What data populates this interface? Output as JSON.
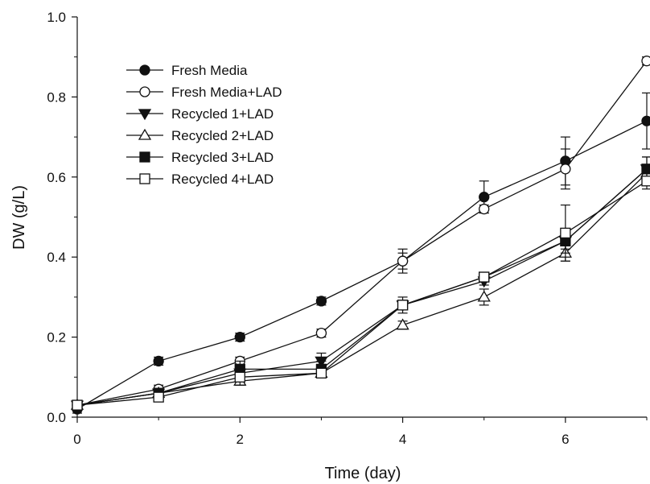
{
  "chart_data": {
    "type": "line",
    "title": "",
    "xlabel": "Time (day)",
    "ylabel": "DW (g/L)",
    "xlim": [
      0,
      7
    ],
    "ylim": [
      0,
      1.0
    ],
    "xticks": [
      0,
      2,
      4,
      6
    ],
    "yticks": [
      0.0,
      0.2,
      0.4,
      0.6,
      0.8,
      1.0
    ],
    "x_tick_labels": [
      "0",
      "2",
      "4",
      "6"
    ],
    "y_tick_labels": [
      "0.0",
      "0.2",
      "0.4",
      "0.6",
      "0.8",
      "1.0"
    ],
    "grid": false,
    "legend_position": "top-left",
    "x": [
      0,
      1,
      2,
      3,
      4,
      5,
      6,
      7
    ],
    "series": [
      {
        "name": "Fresh Media",
        "marker": "filled-circle",
        "values": [
          0.02,
          0.14,
          0.2,
          0.29,
          0.39,
          0.55,
          0.64,
          0.74
        ],
        "errors": [
          0.01,
          0.01,
          0.01,
          0.01,
          0.03,
          0.04,
          0.06,
          0.07
        ]
      },
      {
        "name": "Fresh Media+LAD",
        "marker": "open-circle",
        "values": [
          0.03,
          0.07,
          0.14,
          0.21,
          0.39,
          0.52,
          0.62,
          0.89
        ],
        "errors": [
          0.01,
          0.01,
          0.01,
          0.01,
          0.02,
          0.01,
          0.05,
          0.01
        ]
      },
      {
        "name": "Recycled 1+LAD",
        "marker": "filled-triangle-down",
        "values": [
          0.03,
          0.06,
          0.11,
          0.14,
          0.28,
          0.34,
          0.44,
          0.62
        ],
        "errors": [
          0.01,
          0.01,
          0.01,
          0.02,
          0.02,
          0.01,
          0.02,
          0.03
        ]
      },
      {
        "name": "Recycled 2+LAD",
        "marker": "open-triangle-up",
        "values": [
          0.03,
          0.06,
          0.09,
          0.11,
          0.23,
          0.3,
          0.41,
          0.61
        ],
        "errors": [
          0.01,
          0.01,
          0.01,
          0.01,
          0.01,
          0.02,
          0.02,
          0.02
        ]
      },
      {
        "name": "Recycled 3+LAD",
        "marker": "filled-square",
        "values": [
          0.03,
          0.06,
          0.12,
          0.12,
          0.28,
          0.35,
          0.44,
          0.62
        ],
        "errors": [
          0.01,
          0.01,
          0.02,
          0.02,
          0.01,
          0.01,
          0.03,
          0.03
        ]
      },
      {
        "name": "Recycled 4+LAD",
        "marker": "open-square",
        "values": [
          0.03,
          0.05,
          0.1,
          0.11,
          0.28,
          0.35,
          0.46,
          0.59
        ],
        "errors": [
          0.01,
          0.01,
          0.02,
          0.01,
          0.01,
          0.01,
          0.07,
          0.02
        ]
      }
    ]
  }
}
